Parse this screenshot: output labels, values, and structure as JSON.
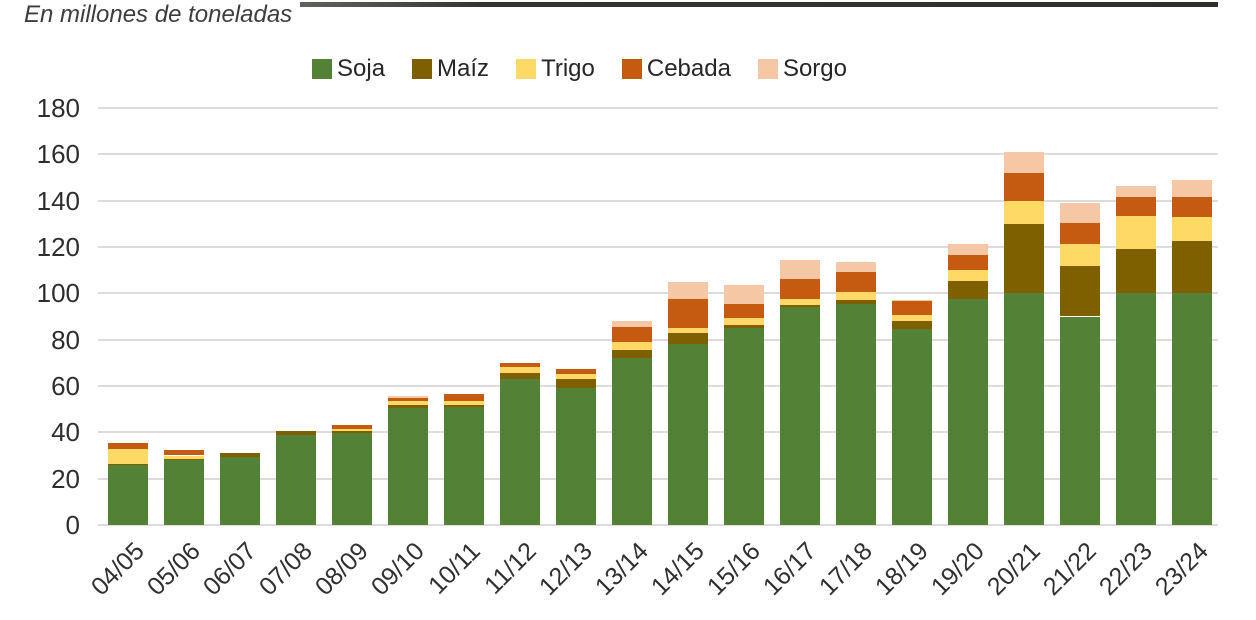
{
  "title": "En millones de toneladas",
  "colors": {
    "soja": "#538135",
    "maiz": "#7F6000",
    "trigo": "#FFD966",
    "cebada": "#C55A11",
    "sorgo": "#F5C7A5",
    "gridline": "#dcdcdc",
    "axis_text": "#2e2e2e",
    "title_text": "#3d3d3d"
  },
  "chart_data": {
    "type": "bar",
    "stacked": true,
    "title": "En millones de toneladas",
    "categories": [
      "04/05",
      "05/06",
      "06/07",
      "07/08",
      "08/09",
      "09/10",
      "10/11",
      "11/12",
      "12/13",
      "13/14",
      "14/15",
      "15/16",
      "16/17",
      "17/18",
      "18/19",
      "19/20",
      "20/21",
      "21/22",
      "22/23",
      "23/24"
    ],
    "series": [
      {
        "name": "Soja",
        "color": "#538135",
        "values": [
          26,
          28,
          29.5,
          39,
          39.5,
          50.5,
          51,
          63,
          59,
          72,
          78,
          85,
          94,
          95.5,
          84.5,
          97.5,
          100,
          90,
          100,
          100
        ]
      },
      {
        "name": "Maíz",
        "color": "#7F6000",
        "values": [
          0.5,
          0.5,
          1.5,
          1.5,
          1,
          1.5,
          1,
          2.5,
          4,
          3.5,
          5,
          1.5,
          1,
          1.5,
          3.5,
          8,
          30,
          22,
          19,
          22.5
        ]
      },
      {
        "name": "Trigo",
        "color": "#FFD966",
        "values": [
          6.5,
          1.5,
          0,
          0,
          1,
          1.5,
          1.5,
          2.5,
          2,
          3.5,
          2,
          3,
          2.5,
          3.5,
          2.5,
          4.5,
          10,
          9.5,
          14.5,
          10.5
        ]
      },
      {
        "name": "Cebada",
        "color": "#C55A11",
        "values": [
          2.5,
          2.5,
          0,
          0,
          1.5,
          1.5,
          3,
          2,
          2.5,
          6.5,
          12.5,
          6,
          8.5,
          8.5,
          6,
          6.5,
          12,
          9,
          8,
          8.5
        ]
      },
      {
        "name": "Sorgo",
        "color": "#F5C7A5",
        "values": [
          0,
          0,
          0,
          0,
          0,
          0.5,
          0,
          0,
          0,
          2.5,
          7.5,
          8,
          8.5,
          4.5,
          0.5,
          5,
          9,
          8.5,
          5,
          7.5
        ]
      }
    ],
    "xlabel": "",
    "ylabel": "",
    "ylim": [
      0,
      180
    ],
    "yticks": [
      0,
      20,
      40,
      60,
      80,
      100,
      120,
      140,
      160,
      180
    ],
    "grid": true,
    "legend_position": "top"
  }
}
